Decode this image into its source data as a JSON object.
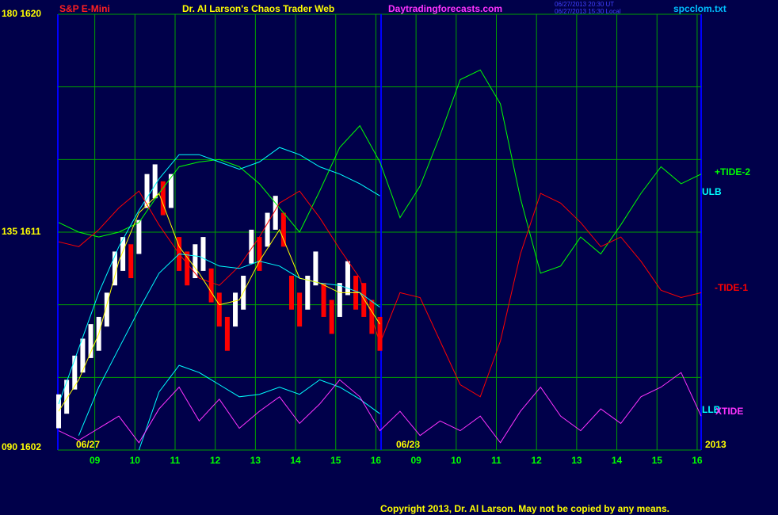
{
  "chart_data": {
    "type": "line",
    "header": {
      "instrument": "S&P E-Mini",
      "title": "Dr. Al Larson's Chaos Trader Web",
      "site": "Daytradingforecasts.com",
      "time_ut": "06/27/2013 20:30 UT",
      "time_local": "06/27/2013 15:30 Local",
      "file": "spcclom.txt"
    },
    "dates": [
      "06/27",
      "06/28",
      "2013"
    ],
    "copyright": "Copyright 2013, Dr. Al Larson. May not be copied by any means.",
    "xlim": [
      8.08,
      24.1
    ],
    "xticks": [
      {
        "value": 9,
        "label": "09"
      },
      10,
      11,
      12,
      13,
      14,
      15,
      16,
      {
        "value": 17,
        "label": "09"
      },
      {
        "value": 18,
        "label": "10"
      },
      {
        "value": 19,
        "label": "11"
      },
      {
        "value": 20,
        "label": "12"
      },
      {
        "value": 21,
        "label": "13"
      },
      {
        "value": 22,
        "label": "14"
      },
      {
        "value": 23,
        "label": "15"
      },
      {
        "value": 24,
        "label": "16"
      }
    ],
    "ylim": [
      1602,
      1620
    ],
    "yticks": [
      {
        "value": 1602,
        "label": "090 1602"
      },
      {
        "value": 1611,
        "label": "135 1611"
      },
      {
        "value": 1620,
        "label": "180 1620"
      }
    ],
    "grid_lines": [
      1605,
      1608,
      1614,
      1617
    ],
    "grid": true,
    "day_boundary": 16.13,
    "x": [
      8.1,
      8.6,
      9.1,
      9.6,
      10.1,
      10.6,
      11.1,
      11.6,
      12.1,
      12.6,
      13.1,
      13.6,
      14.1,
      14.6,
      15.1,
      15.6,
      16.1,
      16.6,
      17.1,
      17.6,
      18.1,
      18.6,
      19.1,
      19.6,
      20.1,
      20.6,
      21.1,
      21.6,
      22.1,
      22.6,
      23.1,
      23.6,
      24.1
    ],
    "series": [
      {
        "name": "+TIDE-2",
        "color": "#00ff00",
        "values": [
          1611.4,
          1611.0,
          1610.8,
          1611.0,
          1611.4,
          1612.6,
          1613.7,
          1613.9,
          1614.0,
          1613.7,
          1613.0,
          1612.0,
          1611.0,
          1612.7,
          1614.5,
          1615.4,
          1613.9,
          1611.6,
          1612.9,
          1615.0,
          1617.3,
          1617.7,
          1616.3,
          1612.4,
          1609.3,
          1609.6,
          1610.8,
          1610.1,
          1611.3,
          1612.6,
          1613.7,
          1613.0,
          1613.4
        ]
      },
      {
        "name": "ULB",
        "color": "#00ffff",
        "values": [
          1603.9,
          1606.2,
          1608.5,
          1610.4,
          1611.9,
          1613.2,
          1614.2,
          1614.2,
          1613.9,
          1613.6,
          1613.9,
          1614.5,
          1614.2,
          1613.7,
          1613.4,
          1613.0,
          1612.5,
          null,
          null,
          null,
          null,
          null,
          null,
          null,
          null,
          null,
          null,
          null,
          null,
          null,
          null,
          null,
          null
        ]
      },
      {
        "name": "-TIDE-1",
        "color": "#ff0000",
        "values": [
          1610.6,
          1610.4,
          1611.1,
          1612.0,
          1612.7,
          1611.3,
          1610.1,
          1609.1,
          1608.8,
          1609.6,
          1610.8,
          1612.2,
          1612.7,
          1611.6,
          1610.3,
          1609.1,
          1606.4,
          1608.5,
          1608.3,
          1606.5,
          1604.7,
          1604.2,
          1606.5,
          1610.1,
          1612.6,
          1612.2,
          1611.4,
          1610.4,
          1610.8,
          1609.8,
          1608.6,
          1608.3,
          1608.5
        ]
      },
      {
        "name": "LLB",
        "color": "#00ffff",
        "values": [
          null,
          null,
          null,
          null,
          1602.0,
          1604.4,
          1605.5,
          1605.2,
          1604.7,
          1604.2,
          1604.3,
          1604.6,
          1604.3,
          1604.9,
          1604.6,
          1604.1,
          1603.5,
          null,
          null,
          null,
          null,
          null,
          null,
          null,
          null,
          null,
          null,
          null,
          null,
          null,
          null,
          null,
          null
        ]
      },
      {
        "name": "XTIDE",
        "color": "#ff33ff",
        "values": [
          1602.8,
          1602.4,
          1602.9,
          1603.4,
          1602.3,
          1603.7,
          1604.6,
          1603.2,
          1604.1,
          1602.9,
          1603.6,
          1604.2,
          1603.1,
          1603.9,
          1604.9,
          1604.2,
          1602.8,
          1603.6,
          1602.6,
          1603.2,
          1602.8,
          1603.4,
          1602.3,
          1603.6,
          1604.6,
          1603.4,
          1602.8,
          1603.7,
          1603.1,
          1604.2,
          1604.6,
          1605.2,
          1603.4
        ]
      },
      {
        "color": "#00ffff",
        "values": [
          null,
          1602.6,
          1604.6,
          1606.2,
          1607.8,
          1609.3,
          1610.1,
          1610.0,
          1609.6,
          1609.5,
          1609.8,
          1609.6,
          1609.1,
          1608.9,
          1608.8,
          1608.5,
          1607.9,
          null,
          null,
          null,
          null,
          null,
          null,
          null,
          null,
          null,
          null,
          null,
          null,
          null,
          null,
          null,
          null
        ]
      },
      {
        "color": "#ffff00",
        "values": [
          1603.6,
          1604.9,
          1606.8,
          1609.8,
          1611.8,
          1612.6,
          1610.4,
          1609.3,
          1608.0,
          1608.2,
          1609.8,
          1611.1,
          1609.1,
          1608.9,
          1608.5,
          1608.5,
          1607.2,
          null,
          null,
          null,
          null,
          null,
          null,
          null,
          null,
          null,
          null,
          null,
          null,
          null,
          null,
          null,
          null
        ]
      }
    ],
    "price": {
      "up_color": "#ffffff",
      "down_color": "#ff0000",
      "x": [
        8.1,
        8.3,
        8.5,
        8.7,
        8.9,
        9.1,
        9.3,
        9.5,
        9.7,
        9.9,
        10.1,
        10.3,
        10.5,
        10.7,
        10.9,
        11.1,
        11.3,
        11.5,
        11.7,
        11.9,
        12.1,
        12.3,
        12.5,
        12.7,
        12.9,
        13.1,
        13.3,
        13.5,
        13.7,
        13.9,
        14.1,
        14.3,
        14.5,
        14.7,
        14.9,
        15.1,
        15.3,
        15.5,
        15.7,
        15.9,
        16.1
      ],
      "high": [
        1604.3,
        1604.9,
        1605.9,
        1606.6,
        1607.2,
        1607.5,
        1608.5,
        1610.2,
        1610.8,
        1610.5,
        1611.5,
        1613.4,
        1613.8,
        1613.1,
        1613.4,
        1610.8,
        1610.2,
        1610.5,
        1610.8,
        1609.5,
        1608.5,
        1607.5,
        1608.5,
        1609.2,
        1611.1,
        1610.8,
        1611.8,
        1612.5,
        1611.8,
        1609.2,
        1608.5,
        1609.2,
        1610.2,
        1608.9,
        1608.2,
        1608.9,
        1609.8,
        1609.2,
        1608.9,
        1608.2,
        1607.5
      ],
      "low": [
        1602.9,
        1603.5,
        1604.5,
        1605.2,
        1605.8,
        1606.1,
        1607.1,
        1608.8,
        1609.4,
        1609.1,
        1610.1,
        1612.0,
        1612.4,
        1611.7,
        1612.0,
        1609.4,
        1608.8,
        1609.1,
        1609.4,
        1608.1,
        1607.1,
        1606.1,
        1607.1,
        1607.8,
        1609.7,
        1609.4,
        1610.4,
        1611.1,
        1610.4,
        1607.8,
        1607.1,
        1607.8,
        1608.8,
        1607.5,
        1606.8,
        1607.5,
        1608.4,
        1607.8,
        1607.5,
        1606.8,
        1606.1
      ]
    }
  }
}
